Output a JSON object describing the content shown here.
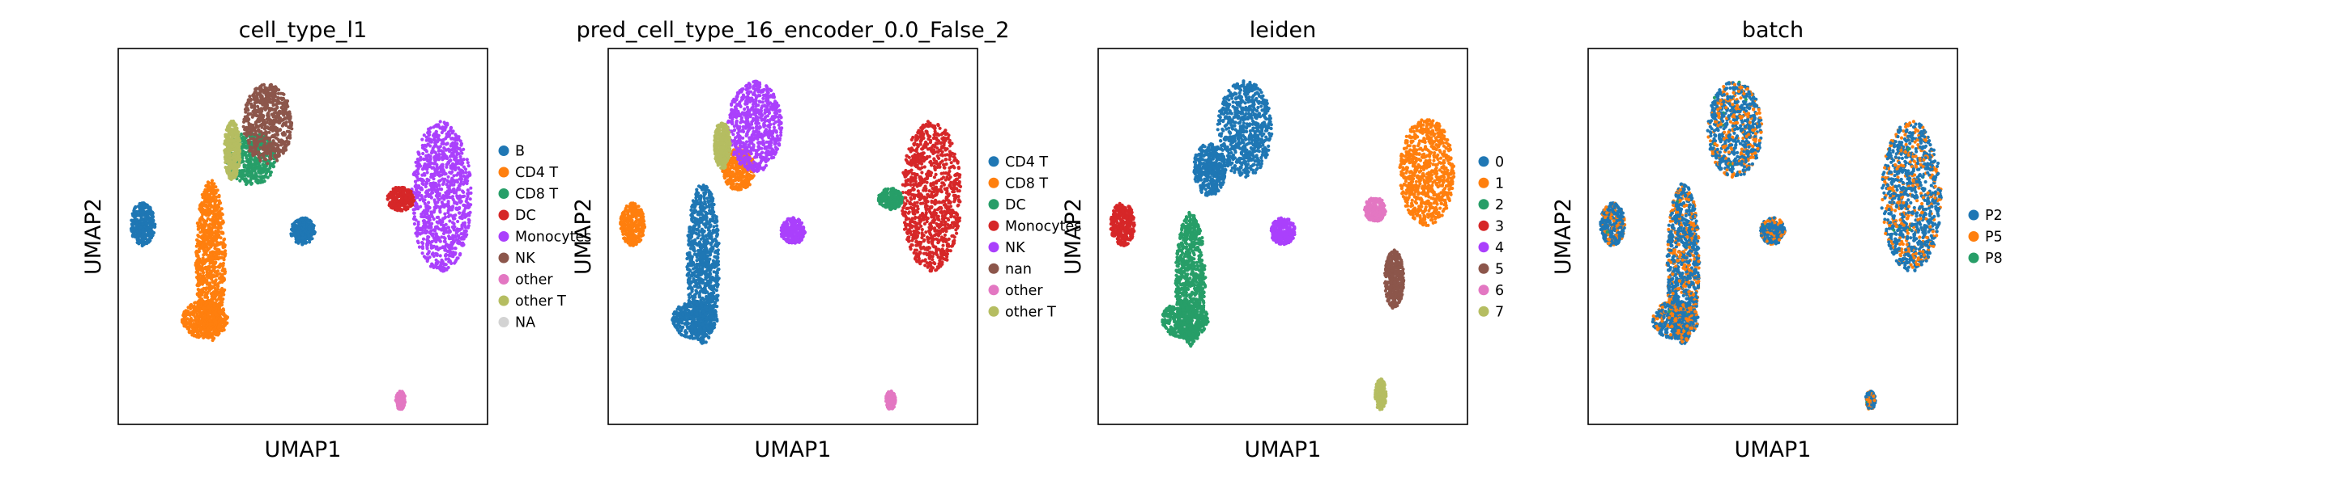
{
  "figure": {
    "description_free": true
  },
  "chart_data": [
    {
      "type": "scatter",
      "title": "cell_type_l1",
      "xlabel": "UMAP1",
      "ylabel": "UMAP2",
      "grid": false,
      "legend_position": "right",
      "legend": [
        {
          "label": "B",
          "color": "#1f77b4"
        },
        {
          "label": "CD4 T",
          "color": "#ff7f0e"
        },
        {
          "label": "CD8 T",
          "color": "#279e68"
        },
        {
          "label": "DC",
          "color": "#d62728"
        },
        {
          "label": "Monocytes",
          "color": "#aa40fc"
        },
        {
          "label": "NK",
          "color": "#8c564b"
        },
        {
          "label": "other",
          "color": "#e377c2"
        },
        {
          "label": "other T",
          "color": "#b5bd61"
        },
        {
          "label": "NA",
          "color": "#d3d3d3"
        }
      ],
      "clusters": [
        {
          "name": "B-left",
          "label": "B",
          "cx": -5.9,
          "cy": 0.25,
          "rx": 0.45,
          "ry": 0.8
        },
        {
          "name": "B-mid",
          "label": "B",
          "cx": 0.0,
          "cy": 0.0,
          "rx": 0.45,
          "ry": 0.5
        },
        {
          "name": "CD4-body",
          "label": "CD4 T",
          "cx": -3.4,
          "cy": -1.1,
          "rx": 0.55,
          "ry": 3.0
        },
        {
          "name": "CD4-bottom",
          "label": "CD4 T",
          "cx": -3.6,
          "cy": -3.3,
          "rx": 0.85,
          "ry": 0.7
        },
        {
          "name": "CD8",
          "label": "CD8 T",
          "cx": -1.9,
          "cy": 2.7,
          "rx": 0.9,
          "ry": 1.0
        },
        {
          "name": "NK",
          "label": "NK",
          "cx": -1.3,
          "cy": 4.0,
          "rx": 0.9,
          "ry": 1.5
        },
        {
          "name": "otherT",
          "label": "other T",
          "cx": -2.6,
          "cy": 3.0,
          "rx": 0.3,
          "ry": 1.1
        },
        {
          "name": "Mono",
          "label": "Monocytes",
          "cx": 5.1,
          "cy": 1.3,
          "rx": 1.1,
          "ry": 2.8
        },
        {
          "name": "DC",
          "label": "DC",
          "cx": 3.6,
          "cy": 1.2,
          "rx": 0.5,
          "ry": 0.45
        },
        {
          "name": "other",
          "label": "other",
          "cx": 3.6,
          "cy": -6.3,
          "rx": 0.18,
          "ry": 0.35
        }
      ]
    },
    {
      "type": "scatter",
      "title": "pred_cell_type_16_encoder_0.0_False_2",
      "xlabel": "UMAP1",
      "ylabel": "UMAP2",
      "grid": false,
      "legend_position": "right",
      "legend": [
        {
          "label": "CD4 T",
          "color": "#1f77b4"
        },
        {
          "label": "CD8 T",
          "color": "#ff7f0e"
        },
        {
          "label": "DC",
          "color": "#279e68"
        },
        {
          "label": "Monocytes",
          "color": "#d62728"
        },
        {
          "label": "NK",
          "color": "#aa40fc"
        },
        {
          "label": "nan",
          "color": "#8c564b"
        },
        {
          "label": "other",
          "color": "#e377c2"
        },
        {
          "label": "other T",
          "color": "#b5bd61"
        }
      ],
      "clusters": [
        {
          "name": "left",
          "label": "CD8 T",
          "cx": -5.9,
          "cy": 0.25,
          "rx": 0.45,
          "ry": 0.8
        },
        {
          "name": "CD4-body",
          "label": "CD4 T",
          "cx": -3.3,
          "cy": -1.2,
          "rx": 0.6,
          "ry": 3.0
        },
        {
          "name": "CD4-bottom",
          "label": "CD4 T",
          "cx": -3.6,
          "cy": -3.3,
          "rx": 0.85,
          "ry": 0.7
        },
        {
          "name": "CD8",
          "label": "CD8 T",
          "cx": -2.0,
          "cy": 2.3,
          "rx": 0.6,
          "ry": 0.8
        },
        {
          "name": "NK-top",
          "label": "NK",
          "cx": -1.4,
          "cy": 3.9,
          "rx": 1.0,
          "ry": 1.7
        },
        {
          "name": "NK-mid",
          "label": "NK",
          "cx": 0.0,
          "cy": 0.0,
          "rx": 0.45,
          "ry": 0.5
        },
        {
          "name": "otherT",
          "label": "other T",
          "cx": -2.6,
          "cy": 3.2,
          "rx": 0.3,
          "ry": 0.9
        },
        {
          "name": "Mono",
          "label": "Monocytes",
          "cx": 5.1,
          "cy": 1.3,
          "rx": 1.1,
          "ry": 2.8
        },
        {
          "name": "DC",
          "label": "DC",
          "cx": 3.6,
          "cy": 1.2,
          "rx": 0.45,
          "ry": 0.4
        },
        {
          "name": "other",
          "label": "other",
          "cx": 3.6,
          "cy": -6.3,
          "rx": 0.18,
          "ry": 0.35
        }
      ]
    },
    {
      "type": "scatter",
      "title": "leiden",
      "xlabel": "UMAP1",
      "ylabel": "UMAP2",
      "grid": false,
      "legend_position": "right",
      "legend": [
        {
          "label": "0",
          "color": "#1f77b4"
        },
        {
          "label": "1",
          "color": "#ff7f0e"
        },
        {
          "label": "2",
          "color": "#279e68"
        },
        {
          "label": "3",
          "color": "#d62728"
        },
        {
          "label": "4",
          "color": "#aa40fc"
        },
        {
          "label": "5",
          "color": "#8c564b"
        },
        {
          "label": "6",
          "color": "#e377c2"
        },
        {
          "label": "7",
          "color": "#b5bd61"
        }
      ],
      "clusters": [
        {
          "name": "c3",
          "label": "3",
          "cx": -5.9,
          "cy": 0.25,
          "rx": 0.45,
          "ry": 0.8
        },
        {
          "name": "c2-body",
          "label": "2",
          "cx": -3.4,
          "cy": -1.8,
          "rx": 0.55,
          "ry": 2.5
        },
        {
          "name": "c2-bottom",
          "label": "2",
          "cx": -3.6,
          "cy": -3.3,
          "rx": 0.85,
          "ry": 0.7
        },
        {
          "name": "c0-top",
          "label": "0",
          "cx": -1.4,
          "cy": 3.8,
          "rx": 1.0,
          "ry": 1.8
        },
        {
          "name": "c0-mid",
          "label": "0",
          "cx": -2.7,
          "cy": 2.3,
          "rx": 0.6,
          "ry": 1.0
        },
        {
          "name": "c4",
          "label": "4",
          "cx": 0.0,
          "cy": 0.0,
          "rx": 0.45,
          "ry": 0.5
        },
        {
          "name": "c1",
          "label": "1",
          "cx": 5.3,
          "cy": 2.2,
          "rx": 1.0,
          "ry": 2.0
        },
        {
          "name": "c5",
          "label": "5",
          "cx": 4.1,
          "cy": -1.8,
          "rx": 0.35,
          "ry": 1.1
        },
        {
          "name": "c6",
          "label": "6",
          "cx": 3.4,
          "cy": 0.8,
          "rx": 0.4,
          "ry": 0.45
        },
        {
          "name": "c7",
          "label": "7",
          "cx": 3.6,
          "cy": -6.1,
          "rx": 0.2,
          "ry": 0.6
        }
      ]
    },
    {
      "type": "scatter",
      "title": "batch",
      "xlabel": "UMAP1",
      "ylabel": "UMAP2",
      "grid": false,
      "legend_position": "right",
      "legend": [
        {
          "label": "P2",
          "color": "#1f77b4"
        },
        {
          "label": "P5",
          "color": "#ff7f0e"
        },
        {
          "label": "P8",
          "color": "#279e68"
        }
      ],
      "clusters": [
        {
          "name": "left",
          "label": "P2",
          "cx": -5.9,
          "cy": 0.25,
          "rx": 0.45,
          "ry": 0.8
        },
        {
          "name": "body",
          "label": "P2",
          "cx": -3.3,
          "cy": -1.2,
          "rx": 0.6,
          "ry": 3.0
        },
        {
          "name": "bottom",
          "label": "P2",
          "cx": -3.6,
          "cy": -3.3,
          "rx": 0.85,
          "ry": 0.7
        },
        {
          "name": "top",
          "label": "P2",
          "cx": -1.4,
          "cy": 3.8,
          "rx": 1.0,
          "ry": 1.8
        },
        {
          "name": "mid",
          "label": "P2",
          "cx": 0.0,
          "cy": 0.0,
          "rx": 0.45,
          "ry": 0.5
        },
        {
          "name": "right",
          "label": "P2",
          "cx": 5.1,
          "cy": 1.3,
          "rx": 1.1,
          "ry": 2.8
        },
        {
          "name": "tail",
          "label": "P2",
          "cx": 3.6,
          "cy": -6.3,
          "rx": 0.18,
          "ry": 0.35
        }
      ],
      "mixing": {
        "P5": 0.3,
        "P8": 0.01
      }
    }
  ]
}
